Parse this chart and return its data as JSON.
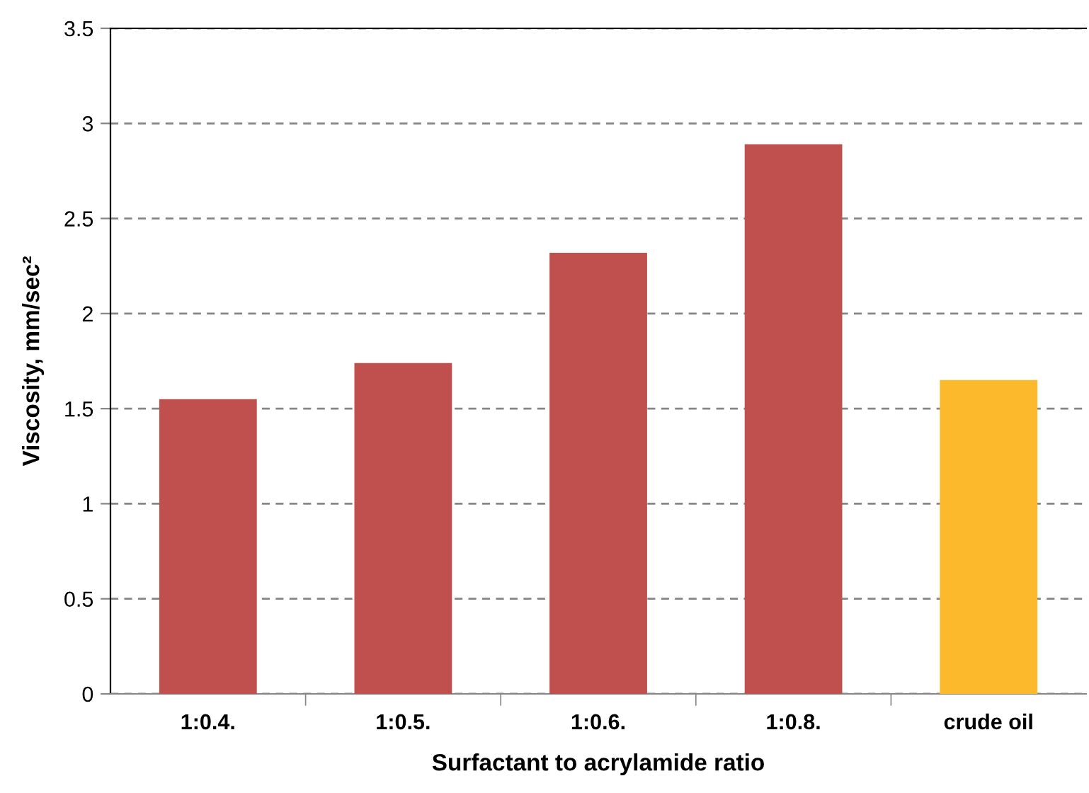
{
  "chart_data": {
    "type": "bar",
    "categories": [
      "1:0.4.",
      "1:0.5.",
      "1:0.6.",
      "1:0.8.",
      "crude oil"
    ],
    "values": [
      1.55,
      1.74,
      2.32,
      2.89,
      1.65
    ],
    "colors": [
      "#c0504d",
      "#c0504d",
      "#c0504d",
      "#c0504d",
      "#fdb92c"
    ],
    "xlabel": "Surfactant to acrylamide ratio",
    "ylabel": "Viscosity, mm/sec²",
    "ylim": [
      0,
      3.5
    ],
    "yticks": [
      0,
      0.5,
      1,
      1.5,
      2,
      2.5,
      3,
      3.5
    ],
    "grid": "y"
  }
}
